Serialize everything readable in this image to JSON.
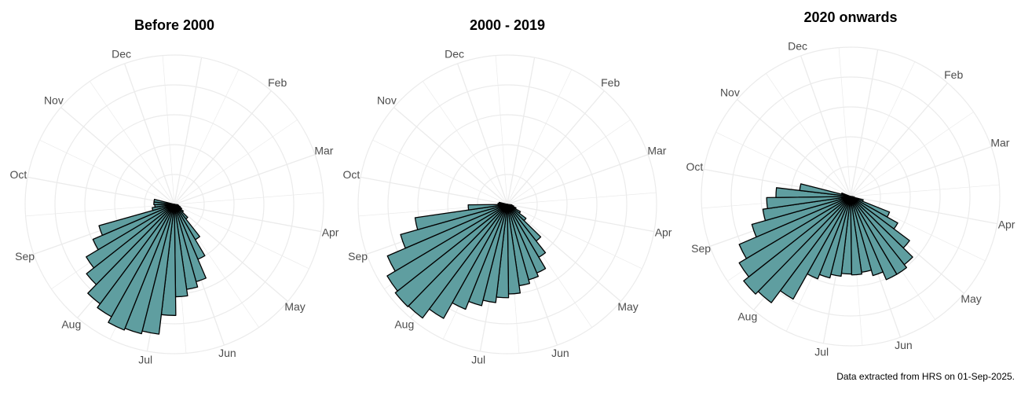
{
  "caption": "Data extracted from HRS on 01-Sep-2025.",
  "colors": {
    "bar_fill": "#5f9ea0",
    "bar_stroke": "#000000",
    "grid": "#ebebeb",
    "label": "#4d4d4d"
  },
  "chart_data": [
    {
      "type": "bar",
      "polar": true,
      "title": "Before 2000",
      "month_labels": [
        "Dec",
        "Feb",
        "Mar",
        "Apr",
        "May",
        "Jun",
        "Jul",
        "Aug",
        "Sep",
        "Oct",
        "Nov"
      ],
      "x_domain": [
        0,
        12
      ],
      "ylim": [
        0,
        160
      ],
      "grid_rings": [
        32,
        64,
        96,
        128,
        160
      ],
      "x": [
        3.35,
        3.6,
        3.85,
        4.1,
        4.35,
        4.6,
        4.85,
        5.1,
        5.35,
        5.6,
        5.85,
        6.1,
        6.35,
        6.6,
        6.85,
        7.1,
        7.35,
        7.6,
        7.85,
        8.1,
        8.35,
        8.6,
        8.85,
        9.1,
        9.35
      ],
      "values": [
        4,
        5,
        7,
        9,
        12,
        20,
        44,
        64,
        86,
        92,
        99,
        119,
        140,
        143,
        145,
        138,
        133,
        120,
        110,
        95,
        84,
        24,
        21,
        22,
        22
      ]
    },
    {
      "type": "bar",
      "polar": true,
      "title": "2000 - 2019",
      "month_labels": [
        "Dec",
        "Feb",
        "Mar",
        "Apr",
        "May",
        "Jun",
        "Jul",
        "Aug",
        "Sep",
        "Oct",
        "Nov"
      ],
      "x_domain": [
        0,
        12
      ],
      "ylim": [
        0,
        160
      ],
      "grid_rings": [
        32,
        64,
        96,
        128,
        160
      ],
      "x": [
        3.35,
        3.6,
        3.85,
        4.1,
        4.35,
        4.6,
        4.85,
        5.1,
        5.35,
        5.6,
        5.85,
        6.1,
        6.35,
        6.6,
        6.85,
        7.1,
        7.35,
        7.6,
        7.85,
        8.1,
        8.35,
        8.6,
        8.85,
        9.1,
        9.35
      ],
      "values": [
        5,
        7,
        10,
        16,
        25,
        50,
        66,
        80,
        84,
        88,
        96,
        100,
        106,
        112,
        121,
        140,
        152,
        153,
        150,
        140,
        119,
        100,
        42,
        10,
        9
      ]
    },
    {
      "type": "bar",
      "polar": true,
      "title": "2020 onwards",
      "month_labels": [
        "Dec",
        "Feb",
        "Mar",
        "Apr",
        "May",
        "Jun",
        "Jul",
        "Aug",
        "Sep",
        "Oct",
        "Nov"
      ],
      "x_domain": [
        0,
        12
      ],
      "ylim": [
        0,
        160
      ],
      "grid_rings": [
        32,
        64,
        96,
        128,
        160
      ],
      "x": [
        3.1,
        3.35,
        3.6,
        3.85,
        4.1,
        4.35,
        4.6,
        4.85,
        5.1,
        5.35,
        5.6,
        5.85,
        6.1,
        6.35,
        6.6,
        6.85,
        7.1,
        7.35,
        7.6,
        7.85,
        8.1,
        8.35,
        8.6,
        8.85,
        9.1,
        9.35,
        9.6
      ],
      "values": [
        2,
        4,
        14,
        45,
        58,
        79,
        93,
        97,
        97,
        88,
        82,
        84,
        83,
        86,
        90,
        95,
        126,
        142,
        146,
        139,
        130,
        110,
        95,
        90,
        80,
        55,
        10
      ]
    }
  ]
}
